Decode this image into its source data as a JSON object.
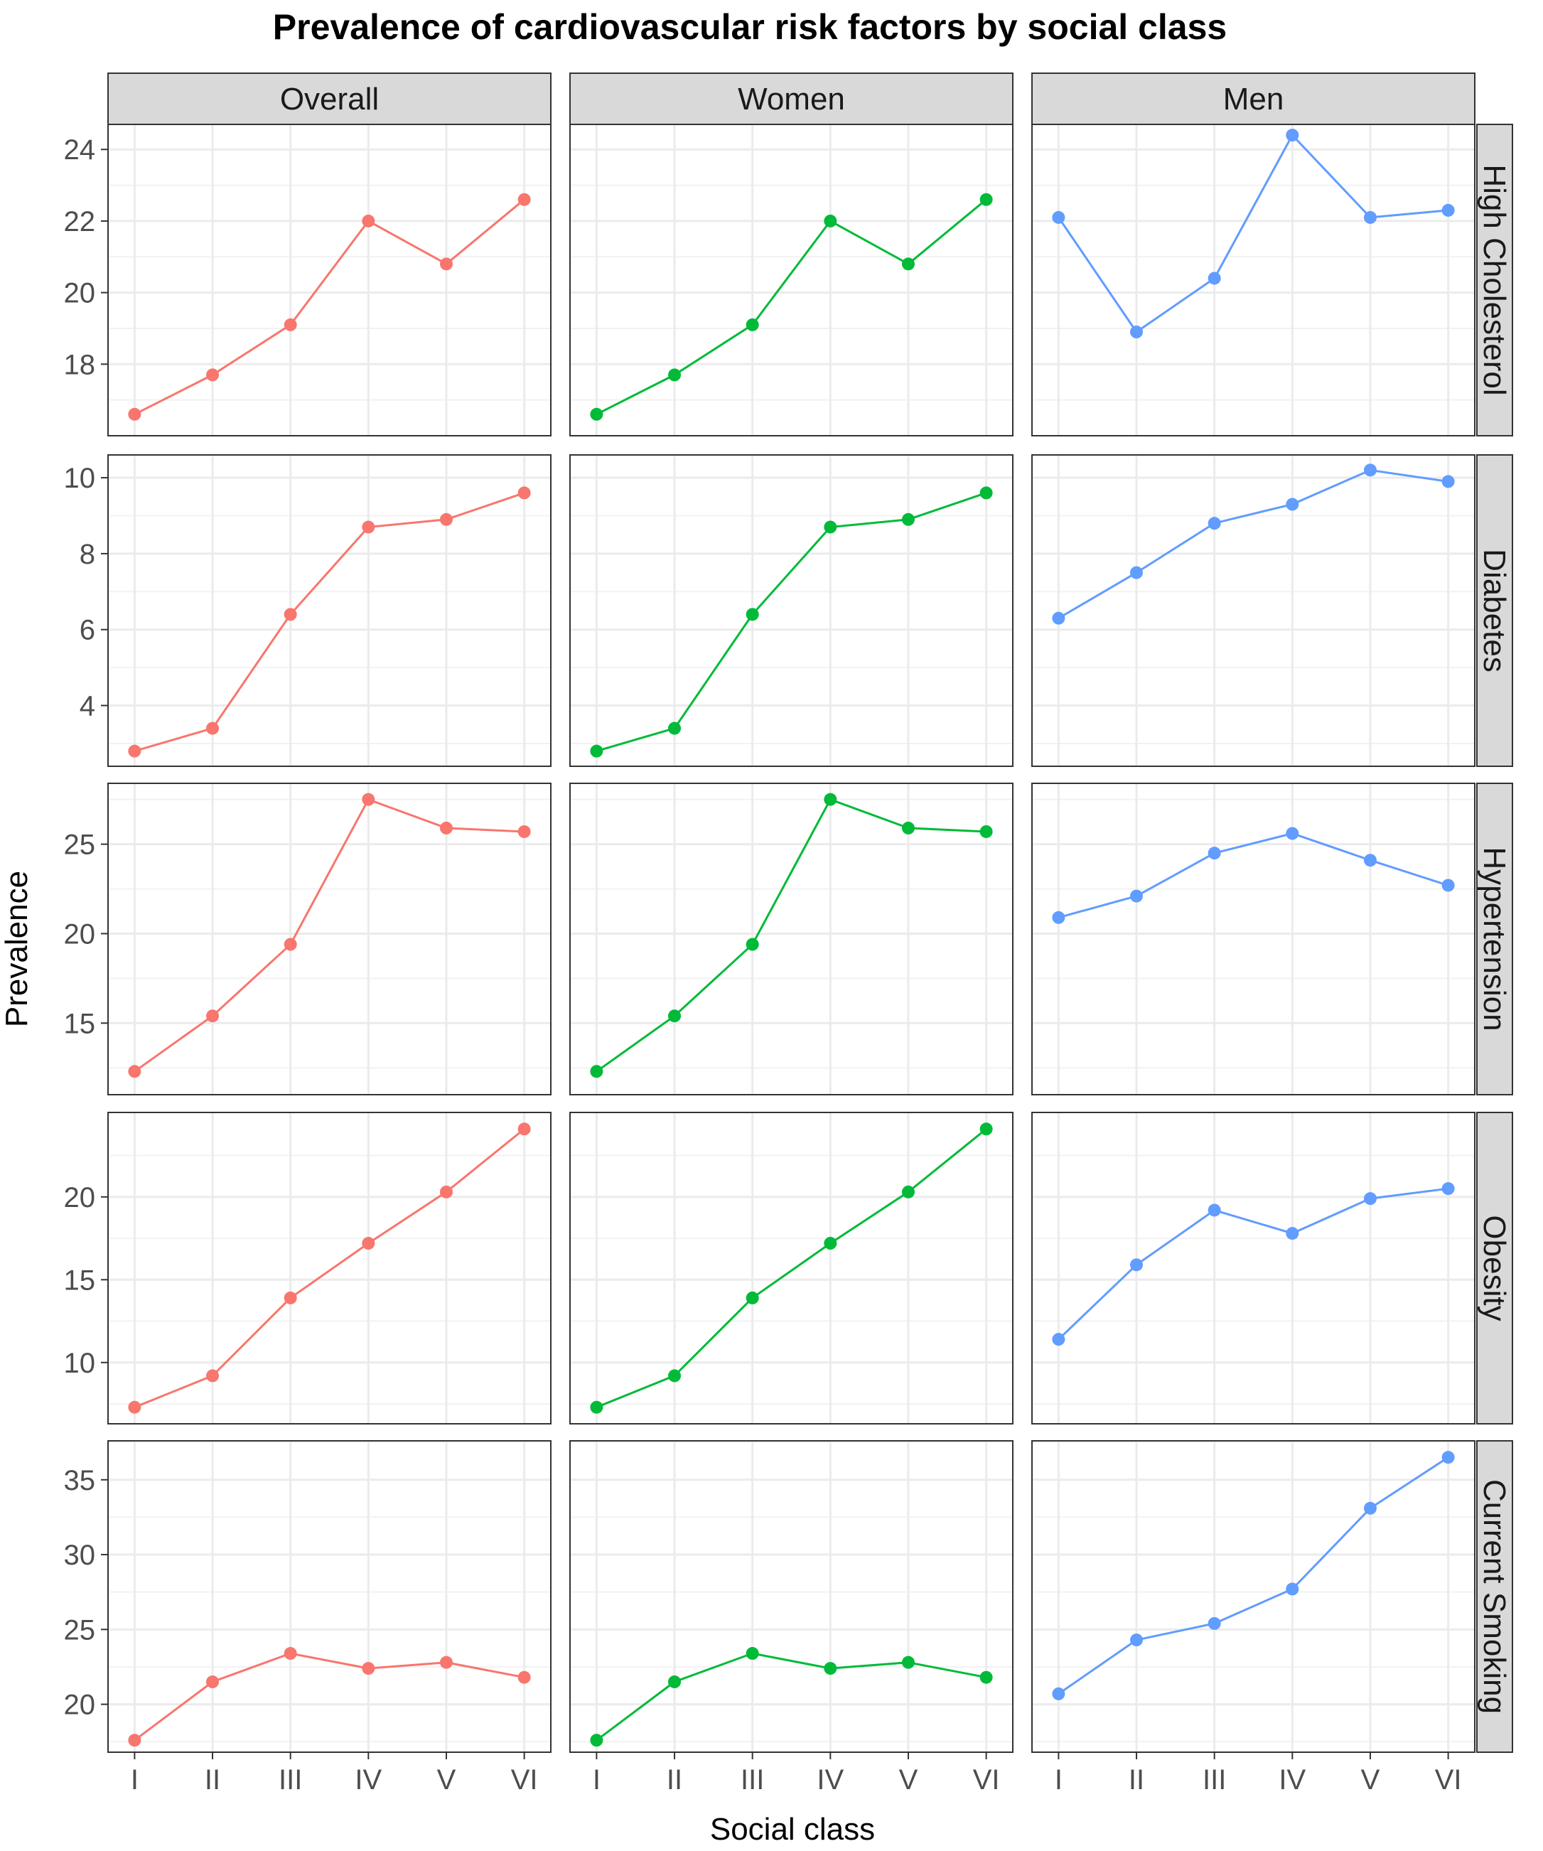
{
  "chart_data": {
    "type": "line",
    "title": "Prevalence of cardiovascular risk factors by social class",
    "xlabel": "Social class",
    "ylabel": "Prevalence",
    "categories": [
      "I",
      "II",
      "III",
      "IV",
      "V",
      "VI"
    ],
    "columns": [
      {
        "label": "Overall",
        "color": "#F8766D"
      },
      {
        "label": "Women",
        "color": "#00BA38"
      },
      {
        "label": "Men",
        "color": "#619CFF"
      }
    ],
    "grid": true,
    "legend": "none",
    "rows": [
      {
        "label": "High Cholesterol",
        "ylim": [
          16.0,
          24.7
        ],
        "yticks": [
          18,
          20,
          22,
          24
        ],
        "series": {
          "Overall": [
            16.6,
            17.7,
            19.1,
            22.0,
            20.8,
            22.6
          ],
          "Women": [
            16.6,
            17.7,
            19.1,
            22.0,
            20.8,
            22.6
          ],
          "Men": [
            22.1,
            18.9,
            20.4,
            24.4,
            22.1,
            22.3
          ]
        }
      },
      {
        "label": "Diabetes",
        "ylim": [
          2.4,
          10.6
        ],
        "yticks": [
          4,
          6,
          8,
          10
        ],
        "series": {
          "Overall": [
            2.8,
            3.4,
            6.4,
            8.7,
            8.9,
            9.6
          ],
          "Women": [
            2.8,
            3.4,
            6.4,
            8.7,
            8.9,
            9.6
          ],
          "Men": [
            6.3,
            7.5,
            8.8,
            9.3,
            10.2,
            9.9
          ]
        }
      },
      {
        "label": "Hypertension",
        "ylim": [
          11.0,
          28.4
        ],
        "yticks": [
          15,
          20,
          25
        ],
        "series": {
          "Overall": [
            12.3,
            15.4,
            19.4,
            27.5,
            25.9,
            25.7
          ],
          "Women": [
            12.3,
            15.4,
            19.4,
            27.5,
            25.9,
            25.7
          ],
          "Men": [
            20.9,
            22.1,
            24.5,
            25.6,
            24.1,
            22.7
          ]
        }
      },
      {
        "label": "Obesity",
        "ylim": [
          6.3,
          25.1
        ],
        "yticks": [
          10,
          15,
          20
        ],
        "series": {
          "Overall": [
            7.3,
            9.2,
            13.9,
            17.2,
            20.3,
            24.1
          ],
          "Women": [
            7.3,
            9.2,
            13.9,
            17.2,
            20.3,
            24.1
          ],
          "Men": [
            11.4,
            15.9,
            19.2,
            17.8,
            19.9,
            20.5
          ]
        }
      },
      {
        "label": "Current Smoking",
        "ylim": [
          16.8,
          37.6
        ],
        "yticks": [
          20,
          25,
          30,
          35
        ],
        "series": {
          "Overall": [
            17.6,
            21.5,
            23.4,
            22.4,
            22.8,
            21.8
          ],
          "Women": [
            17.6,
            21.5,
            23.4,
            22.4,
            22.8,
            21.8
          ],
          "Men": [
            20.7,
            24.3,
            25.4,
            27.7,
            33.1,
            36.5
          ]
        }
      }
    ]
  }
}
